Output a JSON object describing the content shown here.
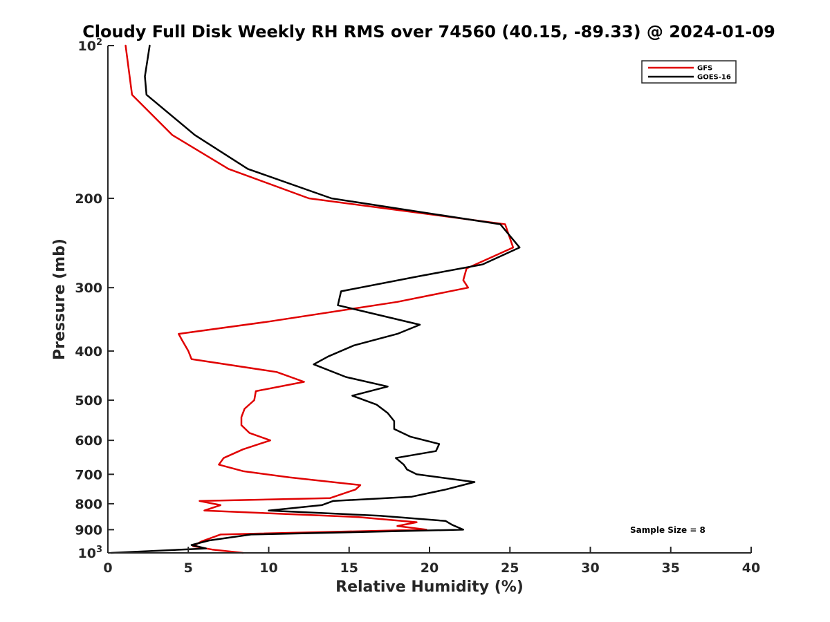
{
  "chart_data": {
    "type": "line",
    "title": "Cloudy Full Disk Weekly RH RMS over 74560 (40.15, -89.33) @ 2024-01-09",
    "xlabel": "Relative Humidity (%)",
    "ylabel": "Pressure (mb)",
    "xlim": [
      0,
      40
    ],
    "ylim": [
      100,
      1000
    ],
    "y_scale": "log",
    "y_reversed": true,
    "grid": false,
    "legend_position": "top-right",
    "x_ticks": [
      0,
      5,
      10,
      15,
      20,
      25,
      30,
      35,
      40
    ],
    "x_tick_labels": [
      "0",
      "5",
      "10",
      "15",
      "20",
      "25",
      "30",
      "35",
      "40"
    ],
    "y_ticks": [
      100,
      200,
      300,
      400,
      500,
      600,
      700,
      800,
      900,
      1000
    ],
    "y_tick_labels": [
      {
        "base": "10",
        "exp": "2"
      },
      {
        "base": "200",
        "exp": ""
      },
      {
        "base": "300",
        "exp": ""
      },
      {
        "base": "400",
        "exp": ""
      },
      {
        "base": "500",
        "exp": ""
      },
      {
        "base": "600",
        "exp": ""
      },
      {
        "base": "700",
        "exp": ""
      },
      {
        "base": "800",
        "exp": ""
      },
      {
        "base": "900",
        "exp": ""
      },
      {
        "base": "10",
        "exp": "3"
      }
    ],
    "annotation": "Sample Size = 8",
    "series": [
      {
        "name": "GFS",
        "color": "#e00000",
        "points": [
          [
            1.1,
            100
          ],
          [
            1.5,
            125
          ],
          [
            4.0,
            150
          ],
          [
            7.5,
            175
          ],
          [
            12.5,
            200
          ],
          [
            24.7,
            225
          ],
          [
            25.2,
            250
          ],
          [
            22.3,
            275
          ],
          [
            22.1,
            290
          ],
          [
            22.4,
            300
          ],
          [
            18.0,
            320
          ],
          [
            10.0,
            350
          ],
          [
            4.4,
            370
          ],
          [
            4.6,
            380
          ],
          [
            5.0,
            400
          ],
          [
            5.2,
            415
          ],
          [
            10.5,
            440
          ],
          [
            12.2,
            460
          ],
          [
            9.2,
            480
          ],
          [
            9.1,
            500
          ],
          [
            8.5,
            520
          ],
          [
            8.3,
            540
          ],
          [
            8.3,
            560
          ],
          [
            8.8,
            580
          ],
          [
            10.1,
            600
          ],
          [
            8.4,
            625
          ],
          [
            7.2,
            650
          ],
          [
            6.9,
            670
          ],
          [
            8.4,
            690
          ],
          [
            11.3,
            710
          ],
          [
            15.7,
            735
          ],
          [
            15.4,
            750
          ],
          [
            13.8,
            780
          ],
          [
            5.7,
            790
          ],
          [
            7.0,
            805
          ],
          [
            6.0,
            825
          ],
          [
            15.6,
            850
          ],
          [
            19.2,
            870
          ],
          [
            18.0,
            885
          ],
          [
            19.8,
            900
          ],
          [
            7.0,
            920
          ],
          [
            5.8,
            950
          ],
          [
            5.3,
            970
          ],
          [
            6.5,
            985
          ],
          [
            8.4,
            1000
          ]
        ]
      },
      {
        "name": "GOES-16",
        "color": "#000000",
        "points": [
          [
            2.6,
            100
          ],
          [
            2.3,
            115
          ],
          [
            2.4,
            125
          ],
          [
            5.4,
            150
          ],
          [
            8.7,
            175
          ],
          [
            13.9,
            200
          ],
          [
            24.4,
            225
          ],
          [
            25.6,
            250
          ],
          [
            23.3,
            270
          ],
          [
            19.3,
            285
          ],
          [
            14.5,
            305
          ],
          [
            14.3,
            325
          ],
          [
            19.4,
            355
          ],
          [
            18.0,
            370
          ],
          [
            15.3,
            390
          ],
          [
            13.7,
            410
          ],
          [
            12.8,
            425
          ],
          [
            14.8,
            450
          ],
          [
            17.4,
            470
          ],
          [
            15.2,
            490
          ],
          [
            16.7,
            510
          ],
          [
            17.4,
            530
          ],
          [
            17.8,
            550
          ],
          [
            17.8,
            570
          ],
          [
            18.8,
            590
          ],
          [
            20.6,
            610
          ],
          [
            20.4,
            630
          ],
          [
            17.9,
            650
          ],
          [
            18.4,
            670
          ],
          [
            18.6,
            685
          ],
          [
            19.2,
            700
          ],
          [
            22.8,
            725
          ],
          [
            21.0,
            750
          ],
          [
            18.9,
            775
          ],
          [
            14.0,
            790
          ],
          [
            13.3,
            805
          ],
          [
            10.0,
            825
          ],
          [
            16.9,
            845
          ],
          [
            21.0,
            865
          ],
          [
            21.4,
            880
          ],
          [
            22.1,
            900
          ],
          [
            8.9,
            920
          ],
          [
            6.3,
            945
          ],
          [
            5.2,
            965
          ],
          [
            6.1,
            980
          ],
          [
            0.2,
            1000
          ]
        ]
      }
    ]
  }
}
